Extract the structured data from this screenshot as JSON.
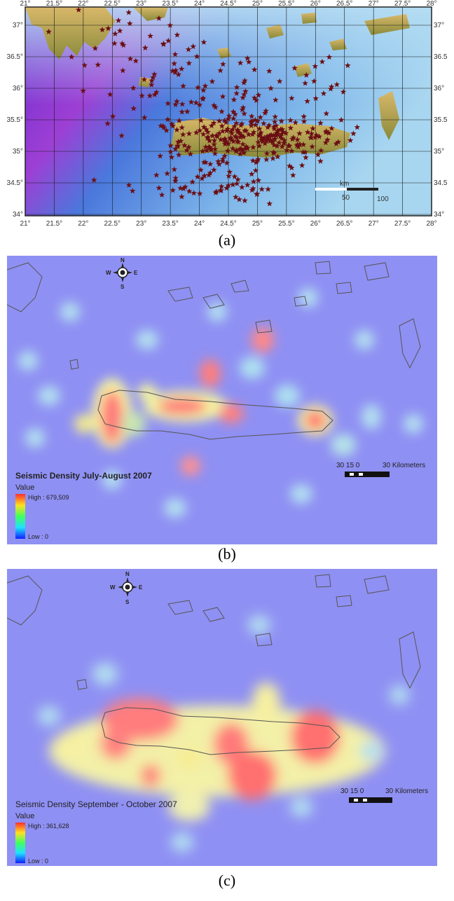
{
  "panel_a": {
    "caption": "(a)",
    "x_ticks": [
      "21°",
      "21.5°",
      "22°",
      "22.5°",
      "23°",
      "23.5°",
      "24°",
      "24.5°",
      "25°",
      "25.5°",
      "26°",
      "26.5°",
      "27°",
      "27.5°",
      "28°"
    ],
    "y_ticks_left": [
      "37°",
      "36.5°",
      "36°",
      "35.5°",
      "35°",
      "34.5°",
      "34°"
    ],
    "y_ticks_right": [
      "37°",
      "36.5",
      "36°",
      "35.5",
      "35°",
      "34.5",
      "34°"
    ],
    "scale_label_top": "km",
    "scale_label_mid": "50",
    "scale_label_right": "100",
    "colors": {
      "sea_deep": "#7c2fd0",
      "sea_mid": "#3a6fd8",
      "sea_shallow": "#8fc6ea",
      "land": "#b99a4b",
      "star": "#6b0f14"
    }
  },
  "panel_b": {
    "caption": "(b)",
    "legend_title": "Seismic Density July-August 2007",
    "legend_value": "Value",
    "legend_high": "High : 679,509",
    "legend_low": "Low : 0",
    "scale_numbers": "30 15  0",
    "scale_units": "30 Kilometers",
    "compass": {
      "n": "N",
      "s": "S",
      "e": "E",
      "w": "W"
    }
  },
  "panel_c": {
    "caption": "(c)",
    "legend_title": "Seismic  Density September - October 2007",
    "legend_value": "Value",
    "legend_high": "High : 361,628",
    "legend_low": "Low : 0",
    "scale_numbers": "30 15  0",
    "scale_units": "30 Kilometers",
    "compass": {
      "n": "N",
      "s": "S",
      "e": "E",
      "w": "W"
    }
  }
}
